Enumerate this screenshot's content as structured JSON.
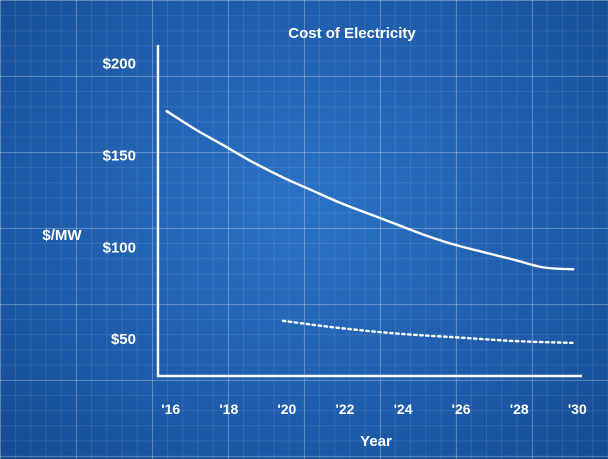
{
  "chart_data": {
    "type": "line",
    "title": "Cost of Electricity",
    "xlabel": "Year",
    "ylabel": "$/MW",
    "xlim": [
      2015.7,
      2030.3
    ],
    "ylim": [
      30,
      210
    ],
    "x_ticks": [
      2016,
      2018,
      2020,
      2022,
      2024,
      2026,
      2028,
      2030
    ],
    "x_tick_labels": [
      "'16",
      "'18",
      "'20",
      "'22",
      "'24",
      "'26",
      "'28",
      "'30"
    ],
    "y_ticks": [
      50,
      100,
      150,
      200
    ],
    "y_tick_labels": [
      "$50",
      "$100",
      "$150",
      "$200"
    ],
    "grid": true,
    "legend": "none",
    "series": [
      {
        "style": "solid",
        "x": [
          2016,
          2017,
          2018,
          2019,
          2020,
          2021,
          2022,
          2023,
          2024,
          2025,
          2026,
          2027,
          2028,
          2029,
          2030
        ],
        "y": [
          174,
          164,
          155,
          146,
          138,
          131,
          124,
          118,
          112,
          106,
          101,
          97,
          93,
          89,
          88
        ]
      },
      {
        "style": "dotted",
        "x": [
          2020,
          2022,
          2024,
          2026,
          2028,
          2030
        ],
        "y": [
          60,
          56,
          53,
          51,
          49,
          48
        ]
      }
    ]
  }
}
